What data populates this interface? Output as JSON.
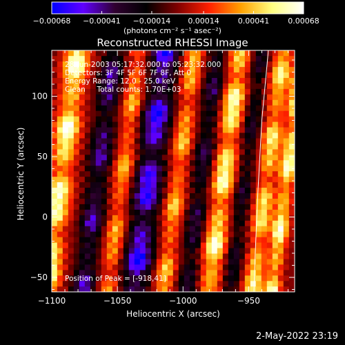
{
  "chart_data": {
    "type": "heatmap",
    "title": "Reconstructed RHESSI Image",
    "xlabel": "Heliocentric X (arcsec)",
    "ylabel": "Heliocentric Y (arcsec)",
    "xlim": [
      -1100,
      -915
    ],
    "ylim": [
      -62,
      138
    ],
    "x_ticks": [
      -1100,
      -1050,
      -1000,
      -950
    ],
    "x_tick_labels": [
      "−1100",
      "−1050",
      "−1000",
      "−950"
    ],
    "y_ticks": [
      -50,
      0,
      50,
      100
    ],
    "y_tick_labels": [
      "−50",
      "0",
      "50",
      "100"
    ],
    "colorbar": {
      "range": [
        -0.00068,
        0.00068
      ],
      "ticks": [
        -0.00068,
        -0.00041,
        -0.00014,
        0.00014,
        0.00041,
        0.00068
      ],
      "tick_labels": [
        "−0.00068",
        "−0.00041",
        "−0.00014",
        "0.00014",
        "0.00041",
        "0.00068"
      ],
      "unit_label": "(photons cm⁻² s⁻¹ asec⁻²)",
      "colormap": [
        "#0000ff",
        "#6000ff",
        "#300030",
        "#000000",
        "#800000",
        "#ff2000",
        "#ffa000",
        "#ffff80",
        "#ffffff"
      ]
    },
    "annotations": {
      "time_range": "28-Jun-2003 05:17:32.000 to 05:23:32.000",
      "detectors": "Detectors: 3F 4F 5F 6F 7F 8F, Att 0",
      "energy": "Energy Range: 12.0 - 25.0 keV",
      "method": "Clean     Total counts: 1.70E+03",
      "peak": "Position of Peak = [-918,41]"
    },
    "limb_curve": [
      [
        -935,
        138
      ],
      [
        -940,
        80
      ],
      [
        -943,
        20
      ],
      [
        -945,
        -30
      ],
      [
        -946,
        -62
      ]
    ],
    "stripes": [
      {
        "x": -1092,
        "amp": 1.0,
        "width": 9
      },
      {
        "x": -1064,
        "amp": -0.7,
        "width": 8
      },
      {
        "x": -1045,
        "amp": 0.6,
        "width": 7
      },
      {
        "x": -1025,
        "amp": -1.0,
        "width": 10
      },
      {
        "x": -1003,
        "amp": 0.65,
        "width": 7
      },
      {
        "x": -985,
        "amp": -0.55,
        "width": 7
      },
      {
        "x": -968,
        "amp": 0.95,
        "width": 8
      },
      {
        "x": -952,
        "amp": -0.45,
        "width": 6
      },
      {
        "x": -935,
        "amp": 0.8,
        "width": 7
      },
      {
        "x": -920,
        "amp": 0.95,
        "width": 6
      }
    ],
    "stripe_tilt_arcsec_per_arcsec": 0.12
  },
  "footer": {
    "timestamp": "2-May-2022 23:19"
  }
}
